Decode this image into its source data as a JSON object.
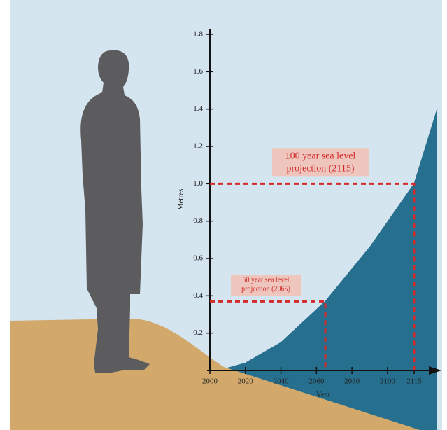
{
  "chart_data": {
    "type": "line",
    "x_label": "Year",
    "y_label": "Metres",
    "xlim": [
      2000,
      2128
    ],
    "ylim": [
      0,
      1.8
    ],
    "xticks": [
      2000,
      2020,
      2040,
      2060,
      2080,
      2100,
      2115
    ],
    "yticks": [
      0.2,
      0.4,
      0.6,
      0.8,
      {
        "value": 1,
        "label": "1.0"
      },
      1.2,
      1.4,
      1.6,
      1.8
    ],
    "series": [
      {
        "name": "Sea level",
        "color": "#276f8e",
        "x": [
          2005,
          2020,
          2040,
          2065,
          2090,
          2115,
          2128
        ],
        "values": [
          0,
          0.04,
          0.15,
          0.37,
          0.66,
          1.0,
          1.4
        ]
      }
    ],
    "projections": [
      {
        "label": [
          "50 year sea level",
          "projection (2065)"
        ],
        "year": 2065,
        "value": 0.37
      },
      {
        "label": [
          "100 year sea level",
          "projection (2115)"
        ],
        "year": 2115,
        "value": 1
      }
    ]
  }
}
